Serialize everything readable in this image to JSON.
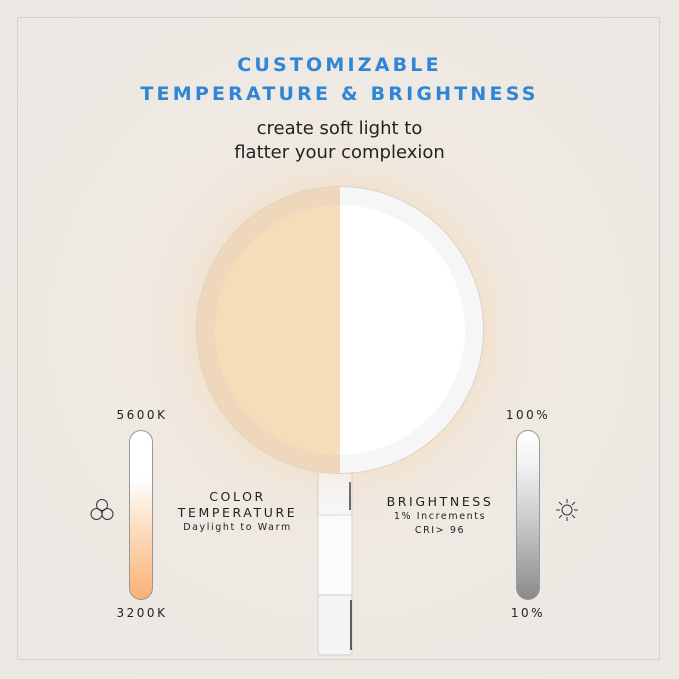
{
  "headline": {
    "line1": "CUSTOMIZABLE",
    "line2": "TEMPERATURE & BRIGHTNESS"
  },
  "subtitle": {
    "line1": "create soft light to",
    "line2": "flatter your complexion"
  },
  "colors": {
    "headline": "#2f86d6",
    "warm": "#f7dcba",
    "cool": "#ffffff",
    "warm_bar_bottom": "#fbb073",
    "gray_bar_bottom": "#8a8a8a"
  },
  "temperature": {
    "top_label": "5600K",
    "bottom_label": "3200K",
    "title_line1": "COLOR",
    "title_line2": "TEMPERATURE",
    "description": "Daylight to Warm",
    "icon": "three-circles-icon"
  },
  "brightness": {
    "top_label": "100%",
    "bottom_label": "10%",
    "title": "BRIGHTNESS",
    "line1": "1% Increments",
    "line2": "CRI> 96",
    "icon": "sun-icon"
  }
}
